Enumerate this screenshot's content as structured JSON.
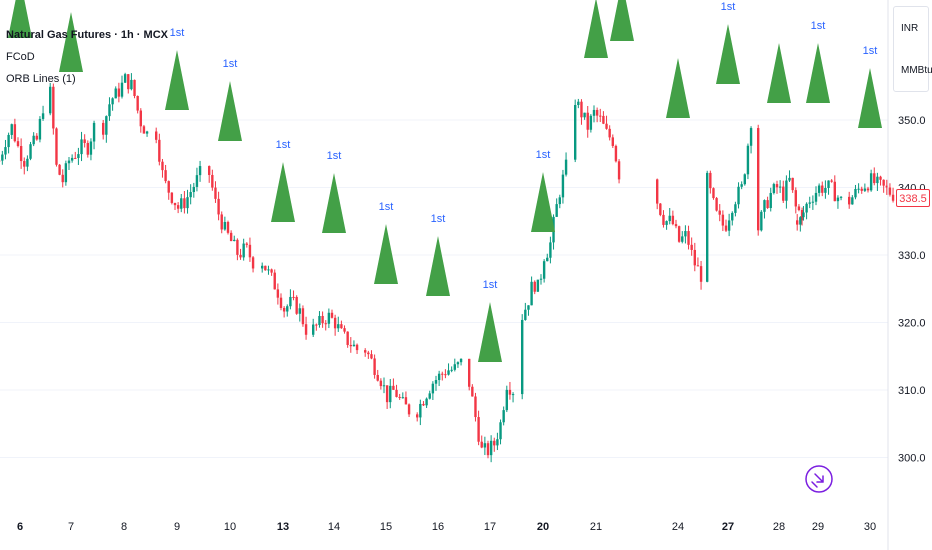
{
  "legend": {
    "symbol_line": "Natural Gas Futures · 1h · MCX",
    "indicator1": "FCoD",
    "indicator2": "ORB Lines (1)"
  },
  "unit_menu": {
    "currency": "INR",
    "unit": "MMBtu"
  },
  "last_price": "338.5",
  "colors": {
    "up": "#089981",
    "down": "#f23645",
    "marker": "#43a047",
    "marker_text": "#2962ff",
    "grid": "#f0f3fa",
    "text": "#131722"
  },
  "icons": {
    "goto_realtime": "arrow-right-circle-icon"
  },
  "chart_data": {
    "type": "candlestick",
    "title": "Natural Gas Futures · 1h · MCX",
    "ylim": [
      296,
      357
    ],
    "y_ticks": [
      300,
      310,
      320,
      330,
      340,
      350
    ],
    "y_tick_labels": [
      "300.0",
      "310.0",
      "320.0",
      "330.0",
      "340.0",
      "350.0"
    ],
    "x_tick_labels": [
      {
        "label": "6",
        "bold": true
      },
      {
        "label": "7"
      },
      {
        "label": "8"
      },
      {
        "label": "9"
      },
      {
        "label": "10"
      },
      {
        "label": "13",
        "bold": true
      },
      {
        "label": "14"
      },
      {
        "label": "15"
      },
      {
        "label": "16"
      },
      {
        "label": "17"
      },
      {
        "label": "20",
        "bold": true
      },
      {
        "label": "21"
      },
      {
        "label": "24"
      },
      {
        "label": "27",
        "bold": true
      },
      {
        "label": "28"
      },
      {
        "label": "29"
      },
      {
        "label": "30"
      }
    ],
    "price_path_sessions": [
      [
        344,
        347,
        349,
        346,
        344,
        346,
        347,
        352
      ],
      [
        354,
        343,
        341,
        344,
        345,
        346,
        346,
        349
      ],
      [
        349,
        353,
        354,
        356,
        355,
        350,
        348
      ],
      [
        348,
        341,
        339,
        337,
        338,
        340,
        342
      ],
      [
        342,
        337,
        334,
        332,
        330,
        331,
        329
      ],
      [
        329,
        327,
        325,
        322,
        323,
        322,
        319
      ],
      [
        319,
        320,
        321,
        320,
        318,
        317,
        316
      ],
      [
        316,
        314,
        312,
        309,
        310,
        308,
        307
      ],
      [
        307,
        309,
        311,
        312,
        313,
        313,
        314
      ],
      [
        311,
        306,
        301,
        301,
        302,
        305,
        311,
        310
      ],
      [
        321,
        323,
        326,
        325,
        330,
        331,
        336,
        340,
        343
      ],
      [
        353,
        351,
        349,
        351,
        350,
        348,
        347,
        342
      ],
      [
        338,
        335,
        335,
        332,
        333,
        329,
        327
      ],
      [
        341,
        336,
        334,
        338,
        340,
        350
      ],
      [
        334,
        337,
        339,
        340,
        339,
        341,
        337,
        336
      ],
      [
        334,
        338,
        340,
        340,
        338
      ],
      [
        338,
        340,
        341,
        340,
        339
      ]
    ],
    "last_value": 338.5,
    "orb_markers": [
      {
        "session": "5",
        "label": ""
      },
      {
        "session": "6",
        "label": ""
      },
      {
        "session": "8",
        "label": "1st"
      },
      {
        "session": "9",
        "label": "1st"
      },
      {
        "session": "10",
        "label": "1st"
      },
      {
        "session": "13",
        "label": "1st"
      },
      {
        "session": "14",
        "label": "1st"
      },
      {
        "session": "15",
        "label": "1st"
      },
      {
        "session": "16",
        "label": "1st"
      },
      {
        "session": "17",
        "label": "1st"
      },
      {
        "session": "20",
        "label": "1st"
      },
      {
        "session": "21",
        "label": ""
      },
      {
        "session": "21b",
        "label": ""
      },
      {
        "session": "24",
        "label": "1st"
      },
      {
        "session": "27",
        "label": ""
      },
      {
        "session": "28",
        "label": "1st"
      },
      {
        "session": "29",
        "label": "1st"
      },
      {
        "session": "30",
        "label": "1st"
      }
    ]
  }
}
